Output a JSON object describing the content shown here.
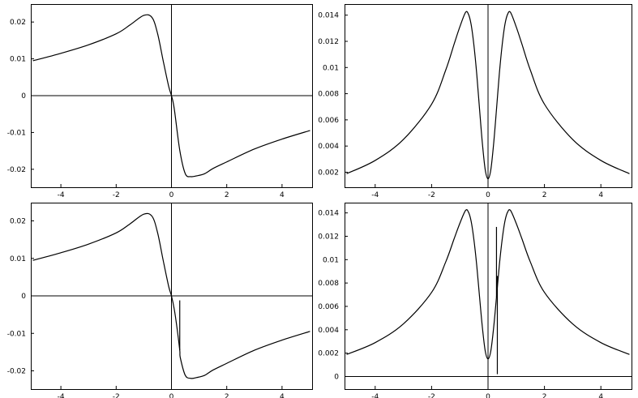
{
  "chart_data": [
    {
      "type": "line",
      "xlim": [
        -5,
        5
      ],
      "ylim": [
        -0.024,
        0.024
      ],
      "x_ticks": [
        -4,
        -2,
        0,
        2,
        4
      ],
      "x_tick_labels": [
        "-4",
        "-2",
        "0",
        "2",
        "4"
      ],
      "y_ticks": [
        0.02,
        0.01,
        0,
        -0.01,
        -0.02
      ],
      "y_tick_labels": [
        "0.02",
        "0.01",
        "0",
        "-0.01",
        "-0.02"
      ],
      "grid": false,
      "series": [
        {
          "x": [
            -5,
            -4,
            -3,
            -2,
            -1.5,
            -1,
            -0.7,
            -0.5,
            -0.3,
            -0.1,
            0,
            0.1,
            0.3,
            0.5,
            0.7,
            0.9,
            1.2,
            1.5,
            2,
            3,
            4,
            5
          ],
          "y": [
            0.0095,
            0.0115,
            0.0138,
            0.0168,
            0.0192,
            0.0218,
            0.0212,
            0.0168,
            0.0095,
            0.0025,
            0,
            -0.0035,
            -0.0148,
            -0.0212,
            -0.022,
            -0.0218,
            -0.0212,
            -0.0198,
            -0.018,
            -0.0145,
            -0.0118,
            -0.0095
          ]
        }
      ],
      "spikes": []
    },
    {
      "type": "line",
      "xlim": [
        -5,
        5
      ],
      "ylim": [
        0.0011,
        0.0146
      ],
      "x_ticks": [
        -4,
        -2,
        0,
        2,
        4
      ],
      "x_tick_labels": [
        "-4",
        "-2",
        "0",
        "2",
        "4"
      ],
      "y_ticks": [
        0.014,
        0.012,
        0.01,
        0.008,
        0.006,
        0.004,
        0.002
      ],
      "y_tick_labels": [
        "0.014",
        "0.012",
        "0.01",
        "0.008",
        "0.006",
        "0.004",
        "0.002"
      ],
      "grid": false,
      "series": [
        {
          "x": [
            -5,
            -4,
            -3,
            -2,
            -1.5,
            -1.2,
            -1,
            -0.8,
            -0.7,
            -0.6,
            -0.5,
            -0.4,
            -0.3,
            -0.2,
            -0.1,
            0,
            0.1,
            0.2,
            0.3,
            0.4,
            0.5,
            0.6,
            0.7,
            0.8,
            1,
            1.2,
            1.5,
            2,
            3,
            4,
            5
          ],
          "y": [
            0.0019,
            0.0029,
            0.0045,
            0.0072,
            0.0098,
            0.0118,
            0.0131,
            0.0142,
            0.0141,
            0.0133,
            0.0117,
            0.0095,
            0.0068,
            0.0042,
            0.0022,
            0.0015,
            0.0022,
            0.0042,
            0.0068,
            0.0095,
            0.0117,
            0.0133,
            0.0141,
            0.0142,
            0.0131,
            0.0118,
            0.0098,
            0.0072,
            0.0045,
            0.0029,
            0.0019
          ]
        }
      ],
      "spikes": []
    },
    {
      "type": "line",
      "xlim": [
        -5,
        5
      ],
      "ylim": [
        -0.024,
        0.024
      ],
      "x_ticks": [
        -4,
        -2,
        0,
        2,
        4
      ],
      "x_tick_labels": [
        "-4",
        "-2",
        "0",
        "2",
        "4"
      ],
      "y_ticks": [
        0.02,
        0.01,
        0,
        -0.01,
        -0.02
      ],
      "y_tick_labels": [
        "0.02",
        "0.01",
        "0",
        "-0.01",
        "-0.02"
      ],
      "grid": false,
      "series": [
        {
          "x": [
            -5,
            -4,
            -3,
            -2,
            -1.5,
            -1,
            -0.7,
            -0.5,
            -0.3,
            -0.1,
            0,
            0.1,
            0.2,
            0.3,
            0.32,
            0.5,
            0.7,
            0.9,
            1.2,
            1.5,
            2,
            3,
            4,
            5
          ],
          "y": [
            0.0095,
            0.0115,
            0.0138,
            0.0168,
            0.0192,
            0.0218,
            0.0212,
            0.0168,
            0.0095,
            0.0025,
            0,
            -0.0035,
            -0.0085,
            -0.0145,
            -0.0165,
            -0.0212,
            -0.022,
            -0.0218,
            -0.0212,
            -0.0198,
            -0.018,
            -0.0145,
            -0.0118,
            -0.0095
          ]
        }
      ],
      "spikes": [
        {
          "x": 0.3,
          "y_from": -0.0145,
          "y_to": -0.0012
        }
      ]
    },
    {
      "type": "line",
      "xlim": [
        -5,
        5
      ],
      "ylim": [
        -0.0008,
        0.0146
      ],
      "x_ticks": [
        -4,
        -2,
        0,
        2,
        4
      ],
      "x_tick_labels": [
        "-4",
        "-2",
        "0",
        "2",
        "4"
      ],
      "y_ticks": [
        0.014,
        0.012,
        0.01,
        0.008,
        0.006,
        0.004,
        0.002,
        0
      ],
      "y_tick_labels": [
        "0.014",
        "0.012",
        "0.01",
        "0.008",
        "0.006",
        "0.004",
        "0.002",
        "0"
      ],
      "grid": false,
      "series": [
        {
          "x": [
            -5,
            -4,
            -3,
            -2,
            -1.5,
            -1.2,
            -1,
            -0.8,
            -0.7,
            -0.6,
            -0.5,
            -0.4,
            -0.3,
            -0.2,
            -0.1,
            0,
            0.1,
            0.2,
            0.3,
            0.4,
            0.5,
            0.6,
            0.7,
            0.8,
            1,
            1.2,
            1.5,
            2,
            3,
            4,
            5
          ],
          "y": [
            0.0019,
            0.0029,
            0.0045,
            0.0072,
            0.0098,
            0.0118,
            0.0131,
            0.0142,
            0.0141,
            0.0133,
            0.0117,
            0.0095,
            0.0068,
            0.0042,
            0.0022,
            0.0015,
            0.0022,
            0.0042,
            0.0068,
            0.0095,
            0.0117,
            0.0133,
            0.0141,
            0.0142,
            0.0131,
            0.0118,
            0.0098,
            0.0072,
            0.0045,
            0.0029,
            0.0019
          ]
        }
      ],
      "spikes": [
        {
          "x": 0.3,
          "y_from": 0.0068,
          "y_to": 0.0128
        },
        {
          "x": 0.33,
          "y_from": 0.0002,
          "y_to": 0.0086
        }
      ]
    }
  ]
}
